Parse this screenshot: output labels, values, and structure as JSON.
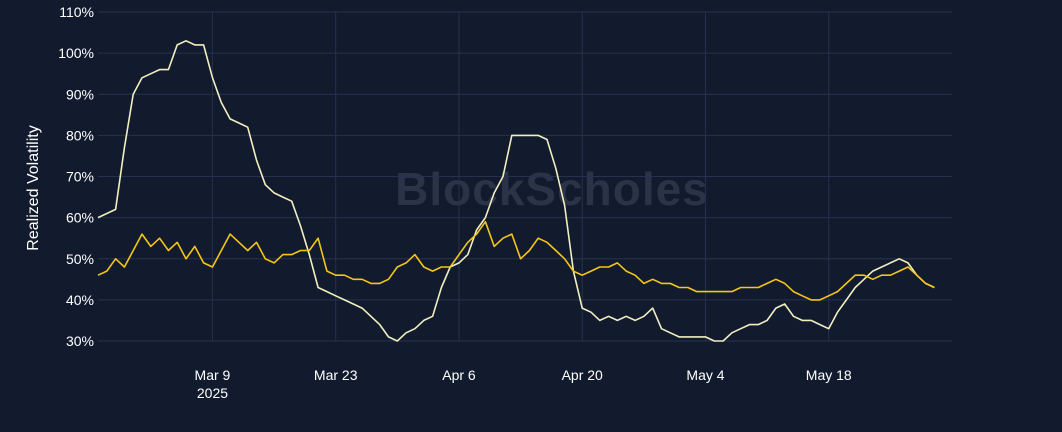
{
  "watermark": "BlockScholes",
  "chart_data": {
    "type": "line",
    "ylabel": "Realized Volatility",
    "xlabel": "",
    "title": "",
    "ylim": [
      0.28,
      1.1
    ],
    "y_ticks": [
      {
        "value": 0.3,
        "label": "30%"
      },
      {
        "value": 0.4,
        "label": "40%"
      },
      {
        "value": 0.5,
        "label": "50%"
      },
      {
        "value": 0.6,
        "label": "60%"
      },
      {
        "value": 0.7,
        "label": "70%"
      },
      {
        "value": 0.8,
        "label": "80%"
      },
      {
        "value": 0.9,
        "label": "90%"
      },
      {
        "value": 1.0,
        "label": "100%"
      },
      {
        "value": 1.1,
        "label": "110%"
      }
    ],
    "xlim": [
      "2025-02-24",
      "2025-06-01"
    ],
    "x_ticks": [
      {
        "value": "2025-03-09",
        "label": "Mar 9",
        "sublabel": "2025"
      },
      {
        "value": "2025-03-23",
        "label": "Mar 23",
        "sublabel": ""
      },
      {
        "value": "2025-04-06",
        "label": "Apr 6",
        "sublabel": ""
      },
      {
        "value": "2025-04-20",
        "label": "Apr 20",
        "sublabel": ""
      },
      {
        "value": "2025-05-04",
        "label": "May 4",
        "sublabel": ""
      },
      {
        "value": "2025-05-18",
        "label": "May 18",
        "sublabel": ""
      }
    ],
    "grid": true,
    "legend": "none",
    "series": [
      {
        "color": "#f1efc0",
        "points": [
          [
            "2025-02-24",
            0.6
          ],
          [
            "2025-02-25",
            0.61
          ],
          [
            "2025-02-26",
            0.62
          ],
          [
            "2025-02-27",
            0.77
          ],
          [
            "2025-02-28",
            0.9
          ],
          [
            "2025-03-01",
            0.94
          ],
          [
            "2025-03-02",
            0.95
          ],
          [
            "2025-03-03",
            0.96
          ],
          [
            "2025-03-04",
            0.96
          ],
          [
            "2025-03-05",
            1.02
          ],
          [
            "2025-03-06",
            1.03
          ],
          [
            "2025-03-07",
            1.02
          ],
          [
            "2025-03-08",
            1.02
          ],
          [
            "2025-03-09",
            0.94
          ],
          [
            "2025-03-10",
            0.88
          ],
          [
            "2025-03-11",
            0.84
          ],
          [
            "2025-03-12",
            0.83
          ],
          [
            "2025-03-13",
            0.82
          ],
          [
            "2025-03-14",
            0.74
          ],
          [
            "2025-03-15",
            0.68
          ],
          [
            "2025-03-16",
            0.66
          ],
          [
            "2025-03-17",
            0.65
          ],
          [
            "2025-03-18",
            0.64
          ],
          [
            "2025-03-19",
            0.58
          ],
          [
            "2025-03-20",
            0.51
          ],
          [
            "2025-03-21",
            0.43
          ],
          [
            "2025-03-22",
            0.42
          ],
          [
            "2025-03-23",
            0.41
          ],
          [
            "2025-03-24",
            0.4
          ],
          [
            "2025-03-25",
            0.39
          ],
          [
            "2025-03-26",
            0.38
          ],
          [
            "2025-03-27",
            0.36
          ],
          [
            "2025-03-28",
            0.34
          ],
          [
            "2025-03-29",
            0.31
          ],
          [
            "2025-03-30",
            0.3
          ],
          [
            "2025-03-31",
            0.32
          ],
          [
            "2025-04-01",
            0.33
          ],
          [
            "2025-04-02",
            0.35
          ],
          [
            "2025-04-03",
            0.36
          ],
          [
            "2025-04-04",
            0.43
          ],
          [
            "2025-04-05",
            0.48
          ],
          [
            "2025-04-06",
            0.49
          ],
          [
            "2025-04-07",
            0.51
          ],
          [
            "2025-04-08",
            0.57
          ],
          [
            "2025-04-09",
            0.6
          ],
          [
            "2025-04-10",
            0.66
          ],
          [
            "2025-04-11",
            0.7
          ],
          [
            "2025-04-12",
            0.8
          ],
          [
            "2025-04-13",
            0.8
          ],
          [
            "2025-04-14",
            0.8
          ],
          [
            "2025-04-15",
            0.8
          ],
          [
            "2025-04-16",
            0.79
          ],
          [
            "2025-04-17",
            0.72
          ],
          [
            "2025-04-18",
            0.63
          ],
          [
            "2025-04-19",
            0.47
          ],
          [
            "2025-04-20",
            0.38
          ],
          [
            "2025-04-21",
            0.37
          ],
          [
            "2025-04-22",
            0.35
          ],
          [
            "2025-04-23",
            0.36
          ],
          [
            "2025-04-24",
            0.35
          ],
          [
            "2025-04-25",
            0.36
          ],
          [
            "2025-04-26",
            0.35
          ],
          [
            "2025-04-27",
            0.36
          ],
          [
            "2025-04-28",
            0.38
          ],
          [
            "2025-04-29",
            0.33
          ],
          [
            "2025-04-30",
            0.32
          ],
          [
            "2025-05-01",
            0.31
          ],
          [
            "2025-05-02",
            0.31
          ],
          [
            "2025-05-03",
            0.31
          ],
          [
            "2025-05-04",
            0.31
          ],
          [
            "2025-05-05",
            0.3
          ],
          [
            "2025-05-06",
            0.3
          ],
          [
            "2025-05-07",
            0.32
          ],
          [
            "2025-05-08",
            0.33
          ],
          [
            "2025-05-09",
            0.34
          ],
          [
            "2025-05-10",
            0.34
          ],
          [
            "2025-05-11",
            0.35
          ],
          [
            "2025-05-12",
            0.38
          ],
          [
            "2025-05-13",
            0.39
          ],
          [
            "2025-05-14",
            0.36
          ],
          [
            "2025-05-15",
            0.35
          ],
          [
            "2025-05-16",
            0.35
          ],
          [
            "2025-05-17",
            0.34
          ],
          [
            "2025-05-18",
            0.33
          ],
          [
            "2025-05-19",
            0.37
          ],
          [
            "2025-05-20",
            0.4
          ],
          [
            "2025-05-21",
            0.43
          ],
          [
            "2025-05-22",
            0.45
          ],
          [
            "2025-05-23",
            0.47
          ],
          [
            "2025-05-24",
            0.48
          ],
          [
            "2025-05-25",
            0.49
          ],
          [
            "2025-05-26",
            0.5
          ],
          [
            "2025-05-27",
            0.49
          ],
          [
            "2025-05-28",
            0.46
          ],
          [
            "2025-05-29",
            0.44
          ],
          [
            "2025-05-30",
            0.43
          ]
        ]
      },
      {
        "color": "#f5c518",
        "points": [
          [
            "2025-02-24",
            0.46
          ],
          [
            "2025-02-25",
            0.47
          ],
          [
            "2025-02-26",
            0.5
          ],
          [
            "2025-02-27",
            0.48
          ],
          [
            "2025-02-28",
            0.52
          ],
          [
            "2025-03-01",
            0.56
          ],
          [
            "2025-03-02",
            0.53
          ],
          [
            "2025-03-03",
            0.55
          ],
          [
            "2025-03-04",
            0.52
          ],
          [
            "2025-03-05",
            0.54
          ],
          [
            "2025-03-06",
            0.5
          ],
          [
            "2025-03-07",
            0.53
          ],
          [
            "2025-03-08",
            0.49
          ],
          [
            "2025-03-09",
            0.48
          ],
          [
            "2025-03-10",
            0.52
          ],
          [
            "2025-03-11",
            0.56
          ],
          [
            "2025-03-12",
            0.54
          ],
          [
            "2025-03-13",
            0.52
          ],
          [
            "2025-03-14",
            0.54
          ],
          [
            "2025-03-15",
            0.5
          ],
          [
            "2025-03-16",
            0.49
          ],
          [
            "2025-03-17",
            0.51
          ],
          [
            "2025-03-18",
            0.51
          ],
          [
            "2025-03-19",
            0.52
          ],
          [
            "2025-03-20",
            0.52
          ],
          [
            "2025-03-21",
            0.55
          ],
          [
            "2025-03-22",
            0.47
          ],
          [
            "2025-03-23",
            0.46
          ],
          [
            "2025-03-24",
            0.46
          ],
          [
            "2025-03-25",
            0.45
          ],
          [
            "2025-03-26",
            0.45
          ],
          [
            "2025-03-27",
            0.44
          ],
          [
            "2025-03-28",
            0.44
          ],
          [
            "2025-03-29",
            0.45
          ],
          [
            "2025-03-30",
            0.48
          ],
          [
            "2025-03-31",
            0.49
          ],
          [
            "2025-04-01",
            0.51
          ],
          [
            "2025-04-02",
            0.48
          ],
          [
            "2025-04-03",
            0.47
          ],
          [
            "2025-04-04",
            0.48
          ],
          [
            "2025-04-05",
            0.48
          ],
          [
            "2025-04-06",
            0.51
          ],
          [
            "2025-04-07",
            0.54
          ],
          [
            "2025-04-08",
            0.56
          ],
          [
            "2025-04-09",
            0.59
          ],
          [
            "2025-04-10",
            0.53
          ],
          [
            "2025-04-11",
            0.55
          ],
          [
            "2025-04-12",
            0.56
          ],
          [
            "2025-04-13",
            0.5
          ],
          [
            "2025-04-14",
            0.52
          ],
          [
            "2025-04-15",
            0.55
          ],
          [
            "2025-04-16",
            0.54
          ],
          [
            "2025-04-17",
            0.52
          ],
          [
            "2025-04-18",
            0.5
          ],
          [
            "2025-04-19",
            0.47
          ],
          [
            "2025-04-20",
            0.46
          ],
          [
            "2025-04-21",
            0.47
          ],
          [
            "2025-04-22",
            0.48
          ],
          [
            "2025-04-23",
            0.48
          ],
          [
            "2025-04-24",
            0.49
          ],
          [
            "2025-04-25",
            0.47
          ],
          [
            "2025-04-26",
            0.46
          ],
          [
            "2025-04-27",
            0.44
          ],
          [
            "2025-04-28",
            0.45
          ],
          [
            "2025-04-29",
            0.44
          ],
          [
            "2025-04-30",
            0.44
          ],
          [
            "2025-05-01",
            0.43
          ],
          [
            "2025-05-02",
            0.43
          ],
          [
            "2025-05-03",
            0.42
          ],
          [
            "2025-05-04",
            0.42
          ],
          [
            "2025-05-05",
            0.42
          ],
          [
            "2025-05-06",
            0.42
          ],
          [
            "2025-05-07",
            0.42
          ],
          [
            "2025-05-08",
            0.43
          ],
          [
            "2025-05-09",
            0.43
          ],
          [
            "2025-05-10",
            0.43
          ],
          [
            "2025-05-11",
            0.44
          ],
          [
            "2025-05-12",
            0.45
          ],
          [
            "2025-05-13",
            0.44
          ],
          [
            "2025-05-14",
            0.42
          ],
          [
            "2025-05-15",
            0.41
          ],
          [
            "2025-05-16",
            0.4
          ],
          [
            "2025-05-17",
            0.4
          ],
          [
            "2025-05-18",
            0.41
          ],
          [
            "2025-05-19",
            0.42
          ],
          [
            "2025-05-20",
            0.44
          ],
          [
            "2025-05-21",
            0.46
          ],
          [
            "2025-05-22",
            0.46
          ],
          [
            "2025-05-23",
            0.45
          ],
          [
            "2025-05-24",
            0.46
          ],
          [
            "2025-05-25",
            0.46
          ],
          [
            "2025-05-26",
            0.47
          ],
          [
            "2025-05-27",
            0.48
          ],
          [
            "2025-05-28",
            0.46
          ],
          [
            "2025-05-29",
            0.44
          ],
          [
            "2025-05-30",
            0.43
          ]
        ]
      }
    ]
  }
}
